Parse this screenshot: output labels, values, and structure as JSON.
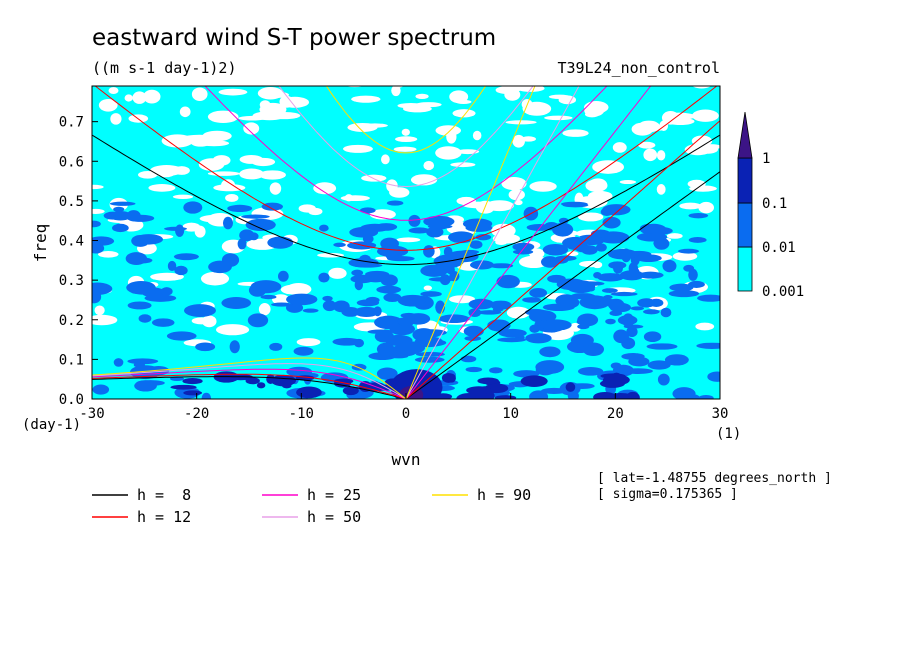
{
  "chart_data": {
    "type": "heatmap",
    "title": "eastward wind S-T power spectrum",
    "subtitle": "((m s-1 day-1)2)",
    "run_label": "T39L24_non_control",
    "xlabel": "wvn",
    "ylabel": "freq",
    "x_unit": "(1)",
    "y_unit": "(day-1)",
    "xlim": [
      -30,
      30
    ],
    "ylim": [
      0,
      0.79
    ],
    "xticks": [
      -30,
      -20,
      -10,
      0,
      10,
      20,
      30
    ],
    "yticks": [
      0.0,
      0.1,
      0.2,
      0.3,
      0.4,
      0.5,
      0.6,
      0.7
    ],
    "ytick_labels": [
      "0.0",
      "0.1",
      "0.2",
      "0.3",
      "0.4",
      "0.5",
      "0.6",
      "0.7"
    ],
    "colorbar": {
      "levels": [
        "0.001",
        "0.01",
        "0.1",
        "1"
      ],
      "colors": [
        "#ffffff",
        "#00ffff",
        "#0a6cf0",
        "#0a22b4",
        "#3c1486"
      ],
      "extend": "max"
    },
    "dispersion_curves": [
      {
        "name": "h =  8",
        "h": 8,
        "color": "#000000"
      },
      {
        "name": "h = 12",
        "h": 12,
        "color": "#ff0000"
      },
      {
        "name": "h = 25",
        "h": 25,
        "color": "#ff00cc"
      },
      {
        "name": "h = 50",
        "h": 50,
        "color": "#e8a0e8"
      },
      {
        "name": "h = 90",
        "h": 90,
        "color": "#ffe000"
      }
    ],
    "annotations": [
      "[ lat=-1.48755 degrees_north ]",
      "[ sigma=0.175365 ]"
    ]
  }
}
